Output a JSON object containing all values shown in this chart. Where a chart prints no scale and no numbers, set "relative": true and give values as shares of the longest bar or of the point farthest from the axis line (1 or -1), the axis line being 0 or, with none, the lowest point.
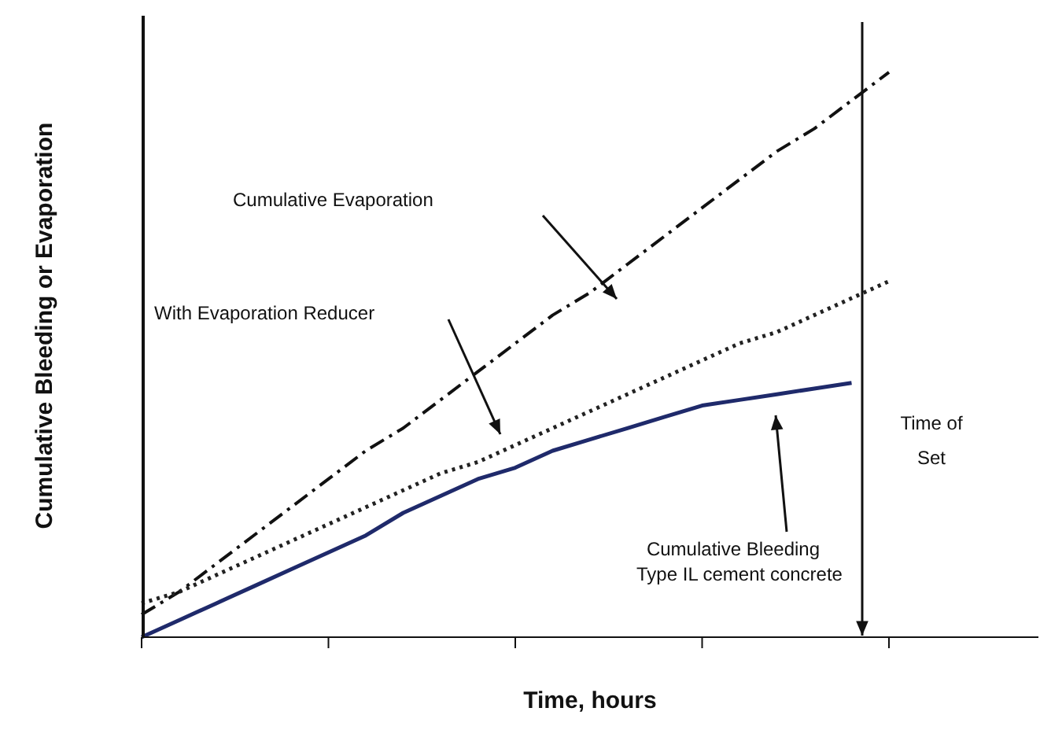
{
  "chart_data": {
    "type": "line",
    "relative": true,
    "xlabel": "Time, hours",
    "ylabel": "Cumulative Bleeding or Evaporation",
    "categories": [
      null,
      null,
      null,
      null,
      null,
      null,
      null,
      null,
      null,
      null,
      null,
      null,
      null,
      null,
      null,
      null,
      null,
      null,
      null,
      null,
      null,
      null,
      null,
      null,
      null
    ],
    "series": [
      {
        "color": "#111111",
        "line_style": "dashed",
        "values": [
          0.04,
          0.08,
          0.13,
          0.18,
          0.23,
          0.28,
          0.33,
          0.37,
          0.42,
          0.47,
          0.52,
          0.57,
          0.61,
          0.66,
          0.71,
          0.76,
          0.81,
          0.86,
          0.9,
          0.95,
          1,
          null,
          null,
          null,
          null
        ]
      },
      {
        "color": "#222222",
        "line_style": "dotted",
        "values": [
          0.06,
          0.08,
          0.11,
          0.14,
          0.17,
          0.2,
          0.23,
          0.26,
          0.29,
          0.31,
          0.34,
          0.37,
          0.4,
          0.43,
          0.46,
          0.49,
          0.52,
          0.54,
          0.57,
          0.6,
          0.63,
          null,
          null,
          null,
          null
        ]
      },
      {
        "color": "#1f2a6b",
        "line_style": "solid",
        "values": [
          0,
          0.03,
          0.06,
          0.09,
          0.12,
          0.15,
          0.18,
          0.22,
          0.25,
          0.28,
          0.3,
          0.33,
          0.35,
          0.37,
          0.39,
          0.41,
          0.42,
          0.43,
          0.44,
          0.45,
          null,
          null,
          null,
          null,
          null
        ]
      }
    ],
    "annotations": [
      "Cumulative Evaporation",
      "With Evaporation Reducer",
      "Cumulative Bleeding",
      "Type IL cement concrete",
      "Time of Set"
    ],
    "marker": "none"
  }
}
